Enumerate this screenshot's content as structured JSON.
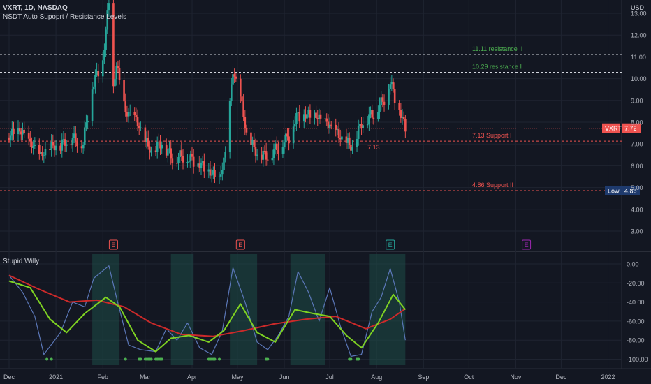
{
  "header": {
    "title": "VXRT, 1D, NASDAQ",
    "indicator": "NSDT Auto Supoprt / Resistance Levels",
    "currency": "USD"
  },
  "subpane": {
    "title": "Stupid Willy"
  },
  "colors": {
    "background": "#131722",
    "grid": "#1f2431",
    "up": "#26a69a",
    "down": "#ef5350",
    "resistance": "#4caf50",
    "support": "#ef5350",
    "willy": "#5b77b8",
    "fast": "#7fd322",
    "slow": "#cc2a2a",
    "dots": "#4caf50"
  },
  "chart_data": [
    {
      "type": "candlestick",
      "series_name": "VXRT",
      "ylim": [
        2.6,
        14.0
      ],
      "y_ticks": [
        "3.00",
        "4.00",
        "5.00",
        "6.00",
        "7.00",
        "8.00",
        "9.00",
        "10.00",
        "11.00",
        "12.00",
        "13.00"
      ],
      "x_labels": [
        "Dec",
        "2021",
        "Feb",
        "Mar",
        "Apr",
        "May",
        "Jun",
        "Jul",
        "Aug",
        "Sep",
        "Oct",
        "Nov",
        "Dec",
        "2022"
      ],
      "price_path": [
        {
          "date": "2020-12-01",
          "close": 7.3
        },
        {
          "date": "2020-12-08",
          "close": 7.6
        },
        {
          "date": "2020-12-15",
          "close": 7.0
        },
        {
          "date": "2020-12-22",
          "close": 6.4
        },
        {
          "date": "2020-12-28",
          "close": 6.8
        },
        {
          "date": "2021-01-04",
          "close": 6.9
        },
        {
          "date": "2021-01-11",
          "close": 7.2
        },
        {
          "date": "2021-01-19",
          "close": 7.0
        },
        {
          "date": "2021-01-25",
          "close": 9.6
        },
        {
          "date": "2021-02-01",
          "close": 10.8
        },
        {
          "date": "2021-02-05",
          "close": 13.5
        },
        {
          "date": "2021-02-08",
          "close": 9.5
        },
        {
          "date": "2021-02-10",
          "close": 10.6
        },
        {
          "date": "2021-02-16",
          "close": 8.4
        },
        {
          "date": "2021-02-22",
          "close": 8.2
        },
        {
          "date": "2021-03-01",
          "close": 7.1
        },
        {
          "date": "2021-03-05",
          "close": 6.6
        },
        {
          "date": "2021-03-12",
          "close": 7.0
        },
        {
          "date": "2021-03-19",
          "close": 6.3
        },
        {
          "date": "2021-03-26",
          "close": 6.4
        },
        {
          "date": "2021-04-05",
          "close": 6.1
        },
        {
          "date": "2021-04-12",
          "close": 5.7
        },
        {
          "date": "2021-04-19",
          "close": 5.3
        },
        {
          "date": "2021-04-23",
          "close": 6.5
        },
        {
          "date": "2021-04-28",
          "close": 10.3
        },
        {
          "date": "2021-05-03",
          "close": 9.1
        },
        {
          "date": "2021-05-07",
          "close": 7.4
        },
        {
          "date": "2021-05-14",
          "close": 6.5
        },
        {
          "date": "2021-05-21",
          "close": 6.4
        },
        {
          "date": "2021-05-28",
          "close": 6.8
        },
        {
          "date": "2021-06-04",
          "close": 7.3
        },
        {
          "date": "2021-06-09",
          "close": 8.2
        },
        {
          "date": "2021-06-16",
          "close": 8.3
        },
        {
          "date": "2021-06-23",
          "close": 8.2
        },
        {
          "date": "2021-07-01",
          "close": 7.8
        },
        {
          "date": "2021-07-09",
          "close": 7.2
        },
        {
          "date": "2021-07-16",
          "close": 6.8
        },
        {
          "date": "2021-07-22",
          "close": 7.9
        },
        {
          "date": "2021-07-29",
          "close": 8.3
        },
        {
          "date": "2021-08-05",
          "close": 8.9
        },
        {
          "date": "2021-08-10",
          "close": 9.8
        },
        {
          "date": "2021-08-16",
          "close": 8.5
        },
        {
          "date": "2021-08-20",
          "close": 7.72
        }
      ],
      "levels": [
        {
          "label": "11.11 resistance II",
          "value": 11.11,
          "kind": "resistance"
        },
        {
          "label": "10.29 resistance I",
          "value": 10.29,
          "kind": "resistance"
        },
        {
          "label": "7.13 Support I",
          "value": 7.13,
          "kind": "support"
        },
        {
          "label": "4.86 Support II",
          "value": 4.86,
          "kind": "support"
        }
      ],
      "last_price": {
        "label": "VXRT",
        "value": "7.72"
      },
      "low_marker": {
        "label": "Low",
        "value": "4.86"
      },
      "annotation": {
        "text": "7.13",
        "date": "2021-07-30"
      },
      "earnings": [
        {
          "date": "2021-02-08",
          "label": "E",
          "state": "down"
        },
        {
          "date": "2021-05-03",
          "label": "E",
          "state": "down"
        },
        {
          "date": "2021-08-10",
          "label": "E",
          "state": "up"
        },
        {
          "date": "2021-11-08",
          "label": "E",
          "state": "upcoming"
        }
      ]
    },
    {
      "type": "line",
      "title": "Stupid Willy",
      "ylim": [
        -105,
        5
      ],
      "y_ticks": [
        "0.00",
        "-20.00",
        "-40.00",
        "-60.00",
        "-80.00",
        "-100.00"
      ],
      "willy": [
        {
          "date": "2020-12-01",
          "value": -12
        },
        {
          "date": "2020-12-10",
          "value": -30
        },
        {
          "date": "2020-12-18",
          "value": -55
        },
        {
          "date": "2020-12-24",
          "value": -95
        },
        {
          "date": "2021-01-04",
          "value": -72
        },
        {
          "date": "2021-01-12",
          "value": -40
        },
        {
          "date": "2021-01-20",
          "value": -45
        },
        {
          "date": "2021-01-26",
          "value": -15
        },
        {
          "date": "2021-02-05",
          "value": -2
        },
        {
          "date": "2021-02-10",
          "value": -35
        },
        {
          "date": "2021-02-18",
          "value": -85
        },
        {
          "date": "2021-02-26",
          "value": -90
        },
        {
          "date": "2021-03-08",
          "value": -92
        },
        {
          "date": "2021-03-15",
          "value": -68
        },
        {
          "date": "2021-03-22",
          "value": -80
        },
        {
          "date": "2021-03-29",
          "value": -62
        },
        {
          "date": "2021-04-06",
          "value": -88
        },
        {
          "date": "2021-04-14",
          "value": -95
        },
        {
          "date": "2021-04-21",
          "value": -70
        },
        {
          "date": "2021-04-28",
          "value": -4
        },
        {
          "date": "2021-05-06",
          "value": -40
        },
        {
          "date": "2021-05-14",
          "value": -82
        },
        {
          "date": "2021-05-21",
          "value": -90
        },
        {
          "date": "2021-05-28",
          "value": -75
        },
        {
          "date": "2021-06-04",
          "value": -55
        },
        {
          "date": "2021-06-10",
          "value": -8
        },
        {
          "date": "2021-06-17",
          "value": -30
        },
        {
          "date": "2021-06-24",
          "value": -60
        },
        {
          "date": "2021-07-01",
          "value": -25
        },
        {
          "date": "2021-07-08",
          "value": -65
        },
        {
          "date": "2021-07-15",
          "value": -97
        },
        {
          "date": "2021-07-22",
          "value": -95
        },
        {
          "date": "2021-07-29",
          "value": -50
        },
        {
          "date": "2021-08-04",
          "value": -35
        },
        {
          "date": "2021-08-10",
          "value": -5
        },
        {
          "date": "2021-08-16",
          "value": -40
        },
        {
          "date": "2021-08-20",
          "value": -80
        }
      ],
      "fast": [
        {
          "date": "2020-12-01",
          "value": -18
        },
        {
          "date": "2020-12-15",
          "value": -25
        },
        {
          "date": "2020-12-28",
          "value": -58
        },
        {
          "date": "2021-01-08",
          "value": -72
        },
        {
          "date": "2021-01-20",
          "value": -52
        },
        {
          "date": "2021-02-03",
          "value": -35
        },
        {
          "date": "2021-02-12",
          "value": -45
        },
        {
          "date": "2021-02-24",
          "value": -80
        },
        {
          "date": "2021-03-08",
          "value": -92
        },
        {
          "date": "2021-03-18",
          "value": -78
        },
        {
          "date": "2021-03-30",
          "value": -75
        },
        {
          "date": "2021-04-12",
          "value": -82
        },
        {
          "date": "2021-04-22",
          "value": -70
        },
        {
          "date": "2021-05-03",
          "value": -42
        },
        {
          "date": "2021-05-14",
          "value": -72
        },
        {
          "date": "2021-05-26",
          "value": -82
        },
        {
          "date": "2021-06-08",
          "value": -48
        },
        {
          "date": "2021-06-20",
          "value": -52
        },
        {
          "date": "2021-07-01",
          "value": -55
        },
        {
          "date": "2021-07-12",
          "value": -75
        },
        {
          "date": "2021-07-22",
          "value": -88
        },
        {
          "date": "2021-08-02",
          "value": -62
        },
        {
          "date": "2021-08-12",
          "value": -32
        },
        {
          "date": "2021-08-20",
          "value": -48
        }
      ],
      "slow": [
        {
          "date": "2020-12-01",
          "value": -12
        },
        {
          "date": "2020-12-20",
          "value": -26
        },
        {
          "date": "2021-01-10",
          "value": -40
        },
        {
          "date": "2021-01-28",
          "value": -38
        },
        {
          "date": "2021-02-15",
          "value": -45
        },
        {
          "date": "2021-03-05",
          "value": -62
        },
        {
          "date": "2021-03-25",
          "value": -74
        },
        {
          "date": "2021-04-15",
          "value": -76
        },
        {
          "date": "2021-05-05",
          "value": -70
        },
        {
          "date": "2021-05-25",
          "value": -63
        },
        {
          "date": "2021-06-15",
          "value": -58
        },
        {
          "date": "2021-07-05",
          "value": -55
        },
        {
          "date": "2021-07-25",
          "value": -68
        },
        {
          "date": "2021-08-10",
          "value": -58
        },
        {
          "date": "2021-08-20",
          "value": -47
        }
      ],
      "bull_zones": [
        [
          "2021-01-25",
          "2021-02-12"
        ],
        [
          "2021-03-18",
          "2021-04-02"
        ],
        [
          "2021-04-26",
          "2021-05-14"
        ],
        [
          "2021-06-05",
          "2021-06-28"
        ],
        [
          "2021-07-27",
          "2021-08-20"
        ]
      ],
      "dots": [
        "2020-12-26",
        "2020-12-29",
        "2021-02-16",
        "2021-02-25",
        "2021-02-26",
        "2021-03-01",
        "2021-03-02",
        "2021-03-03",
        "2021-03-04",
        "2021-03-05",
        "2021-03-08",
        "2021-03-09",
        "2021-03-10",
        "2021-03-11",
        "2021-03-12",
        "2021-04-12",
        "2021-04-13",
        "2021-04-14",
        "2021-04-15",
        "2021-04-16",
        "2021-04-19",
        "2021-05-20",
        "2021-05-21",
        "2021-07-14",
        "2021-07-15",
        "2021-07-19",
        "2021-07-20"
      ]
    }
  ]
}
